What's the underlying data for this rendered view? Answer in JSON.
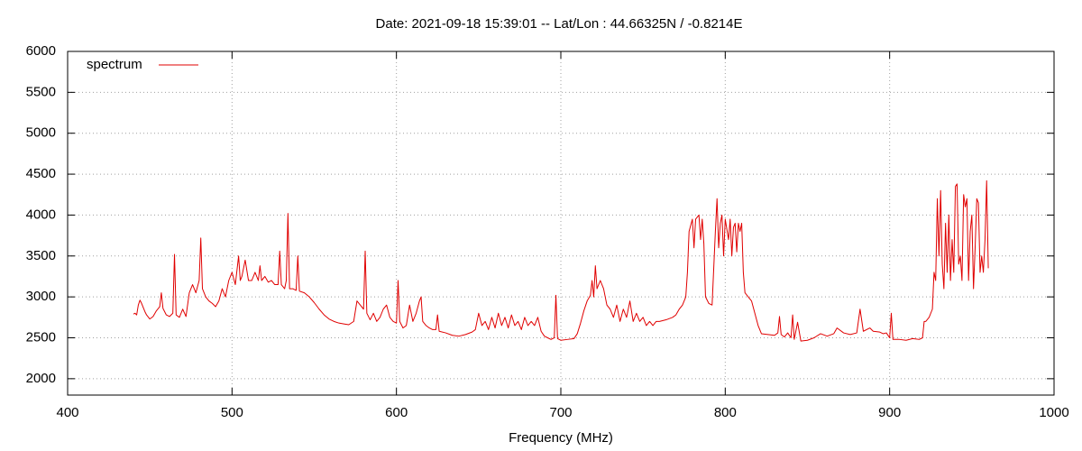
{
  "chart_data": {
    "type": "line",
    "title": "Date: 2021-09-18 15:39:01  --  Lat/Lon : 44.66325N / -0.8214E",
    "x_label": "Frequency (MHz)",
    "x": [
      440,
      441,
      442,
      443,
      444,
      445,
      446,
      447,
      448,
      450,
      452,
      454,
      456,
      457,
      458,
      460,
      462,
      464,
      465,
      466,
      468,
      470,
      472,
      474,
      476,
      478,
      480,
      481,
      482,
      484,
      486,
      488,
      490,
      492,
      494,
      496,
      498,
      500,
      502,
      504,
      505,
      506,
      508,
      510,
      512,
      514,
      516,
      517,
      518,
      520,
      522,
      524,
      526,
      528,
      529,
      530,
      532,
      533,
      534,
      535,
      537,
      539,
      540,
      541,
      544,
      547,
      550,
      553,
      556,
      559,
      562,
      565,
      568,
      571,
      574,
      576,
      578,
      580,
      581,
      582,
      584,
      586,
      588,
      590,
      592,
      594,
      596,
      598,
      600,
      601,
      602,
      604,
      606,
      608,
      610,
      612,
      614,
      615,
      616,
      618,
      620,
      622,
      624,
      625,
      626,
      630,
      634,
      638,
      642,
      646,
      648,
      650,
      652,
      654,
      656,
      658,
      660,
      662,
      664,
      666,
      668,
      670,
      672,
      674,
      676,
      678,
      680,
      682,
      684,
      686,
      688,
      690,
      692,
      694,
      696,
      697,
      698,
      700,
      704,
      708,
      710,
      712,
      714,
      716,
      718,
      719,
      720,
      721,
      722,
      724,
      726,
      728,
      730,
      732,
      734,
      736,
      738,
      740,
      742,
      744,
      746,
      748,
      750,
      752,
      754,
      756,
      758,
      760,
      764,
      768,
      770,
      772,
      774,
      776,
      777,
      778,
      780,
      781,
      782,
      784,
      785,
      786,
      787,
      788,
      790,
      792,
      794,
      795,
      796,
      797,
      798,
      799,
      800,
      802,
      803,
      804,
      805,
      806,
      807,
      808,
      809,
      810,
      811,
      812,
      814,
      816,
      818,
      820,
      822,
      826,
      830,
      832,
      833,
      834,
      836,
      838,
      840,
      841,
      842,
      844,
      846,
      850,
      854,
      858,
      862,
      866,
      868,
      872,
      876,
      880,
      882,
      884,
      888,
      890,
      894,
      896,
      898,
      900,
      901,
      902,
      906,
      910,
      914,
      918,
      920,
      921,
      922,
      924,
      926,
      927,
      928,
      929,
      930,
      931,
      932,
      933,
      934,
      935,
      936,
      937,
      938,
      939,
      940,
      941,
      942,
      943,
      944,
      945,
      946,
      947,
      948,
      949,
      950,
      951,
      952,
      953,
      954,
      955,
      956,
      957,
      958,
      959,
      960
    ],
    "series": [
      {
        "name": "spectrum",
        "color": "#e00000",
        "values": [
          2790,
          2800,
          2780,
          2900,
          2960,
          2920,
          2870,
          2820,
          2780,
          2730,
          2760,
          2830,
          2880,
          3050,
          2860,
          2780,
          2760,
          2800,
          3520,
          2780,
          2750,
          2850,
          2760,
          3050,
          3150,
          3050,
          3200,
          3720,
          3100,
          3000,
          2950,
          2920,
          2880,
          2950,
          3100,
          3000,
          3200,
          3300,
          3150,
          3500,
          3200,
          3250,
          3450,
          3200,
          3200,
          3300,
          3200,
          3380,
          3200,
          3250,
          3180,
          3200,
          3150,
          3150,
          3560,
          3150,
          3100,
          3200,
          4020,
          3100,
          3100,
          3080,
          3500,
          3070,
          3050,
          3000,
          2930,
          2850,
          2780,
          2730,
          2700,
          2680,
          2670,
          2660,
          2700,
          2950,
          2900,
          2850,
          3560,
          2800,
          2720,
          2800,
          2700,
          2750,
          2850,
          2900,
          2750,
          2700,
          2680,
          3200,
          2700,
          2620,
          2650,
          2900,
          2700,
          2800,
          2950,
          3000,
          2700,
          2650,
          2620,
          2600,
          2600,
          2780,
          2580,
          2560,
          2530,
          2520,
          2540,
          2570,
          2600,
          2800,
          2650,
          2700,
          2600,
          2750,
          2620,
          2800,
          2650,
          2750,
          2620,
          2780,
          2650,
          2700,
          2600,
          2750,
          2650,
          2700,
          2650,
          2750,
          2580,
          2520,
          2500,
          2480,
          2500,
          3020,
          2490,
          2470,
          2480,
          2490,
          2550,
          2680,
          2830,
          2950,
          3020,
          3200,
          3000,
          3380,
          3100,
          3200,
          3100,
          2900,
          2850,
          2750,
          2900,
          2700,
          2850,
          2750,
          2950,
          2700,
          2800,
          2700,
          2750,
          2650,
          2700,
          2650,
          2700,
          2700,
          2720,
          2750,
          2780,
          2850,
          2900,
          3000,
          3300,
          3800,
          3950,
          3600,
          3950,
          4000,
          3700,
          3950,
          3650,
          3000,
          2920,
          2900,
          3800,
          4200,
          3600,
          3900,
          4000,
          3500,
          3950,
          3700,
          3950,
          3500,
          3850,
          3900,
          3550,
          3900,
          3800,
          3900,
          3300,
          3050,
          3000,
          2950,
          2800,
          2650,
          2550,
          2540,
          2530,
          2560,
          2760,
          2540,
          2510,
          2560,
          2500,
          2780,
          2480,
          2690,
          2460,
          2470,
          2500,
          2550,
          2520,
          2550,
          2620,
          2560,
          2540,
          2560,
          2850,
          2580,
          2620,
          2580,
          2570,
          2550,
          2560,
          2500,
          2800,
          2480,
          2480,
          2470,
          2490,
          2480,
          2500,
          2700,
          2700,
          2750,
          2850,
          3300,
          3200,
          4200,
          3500,
          4300,
          3400,
          3100,
          3900,
          3300,
          4000,
          3200,
          3700,
          3300,
          4350,
          4380,
          3400,
          3500,
          3200,
          4250,
          4100,
          4200,
          3200,
          3800,
          4000,
          3100,
          3600,
          4200,
          4150,
          3300,
          3500,
          3300,
          3700,
          4420,
          3350
        ]
      }
    ],
    "xlim": [
      400,
      1000
    ],
    "xticks": [
      400,
      500,
      600,
      700,
      800,
      900,
      1000
    ],
    "ylim": [
      1800,
      6000
    ],
    "yticks": [
      2000,
      2500,
      3000,
      3500,
      4000,
      4500,
      5000,
      5500,
      6000
    ],
    "grid": true,
    "legend": "top-left"
  }
}
